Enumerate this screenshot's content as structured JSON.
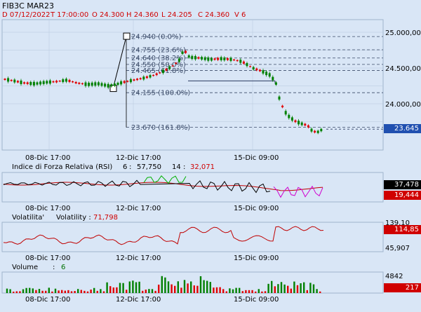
{
  "header": {
    "symbol": "FIB3C MAR23",
    "date": "D 07/12/2022",
    "time": "T 17:00:00",
    "open": "O 24.300",
    "high": "H 24.360",
    "low": "L 24.205",
    "close": "C 24.360",
    "volume": "V 6"
  },
  "price_axis": {
    "ticks": [
      "25.000,00",
      "24.500,00",
      "24.000,00"
    ],
    "tick_values": [
      25000,
      24500,
      24000
    ],
    "last_price": "23.645",
    "last_value": 23645
  },
  "fibonacci": {
    "levels": [
      {
        "label": "24.940 (0.0%)",
        "value": 24940
      },
      {
        "label": "24.755 (23.6%)",
        "value": 24755
      },
      {
        "label": "24.640 (38.2%)",
        "value": 24640
      },
      {
        "label": "24.550 (50.0%)",
        "value": 24550
      },
      {
        "label": "24.465 (61.8%)",
        "value": 24465
      },
      {
        "label": "24.155 (100.0%)",
        "value": 24155
      },
      {
        "label": "23.670 (161.8%)",
        "value": 23670
      }
    ]
  },
  "time_axis": {
    "labels": [
      "08-Dic 17:00",
      "12-Dic 17:00",
      "15-Dic 09:00"
    ]
  },
  "rsi": {
    "title": "Indice di Forza Relativa (RSI)",
    "period1": "6",
    "value1": "57,750",
    "period2": "14",
    "value2": "32,071",
    "tag1": "37,478",
    "tag2": "19,444"
  },
  "volatility": {
    "title": "Volatilita'",
    "name": "Volatility :",
    "value": "71,798",
    "axis_top": "139,10",
    "axis_bottom": "45,907",
    "tag": "114,85"
  },
  "volume": {
    "title": "Volume",
    "sep": ":",
    "value": "6",
    "axis_top": "4842",
    "tag": "217"
  },
  "colors": {
    "up": "#008000",
    "down": "#e00000",
    "grid": "#b8c8dc",
    "fib_line": "#3a4a68",
    "rsi_red": "#c00000",
    "rsi_black": "#000000",
    "rsi_green": "#00b000",
    "rsi_magenta": "#d000d0",
    "last_tag": "#2050b0"
  }
}
